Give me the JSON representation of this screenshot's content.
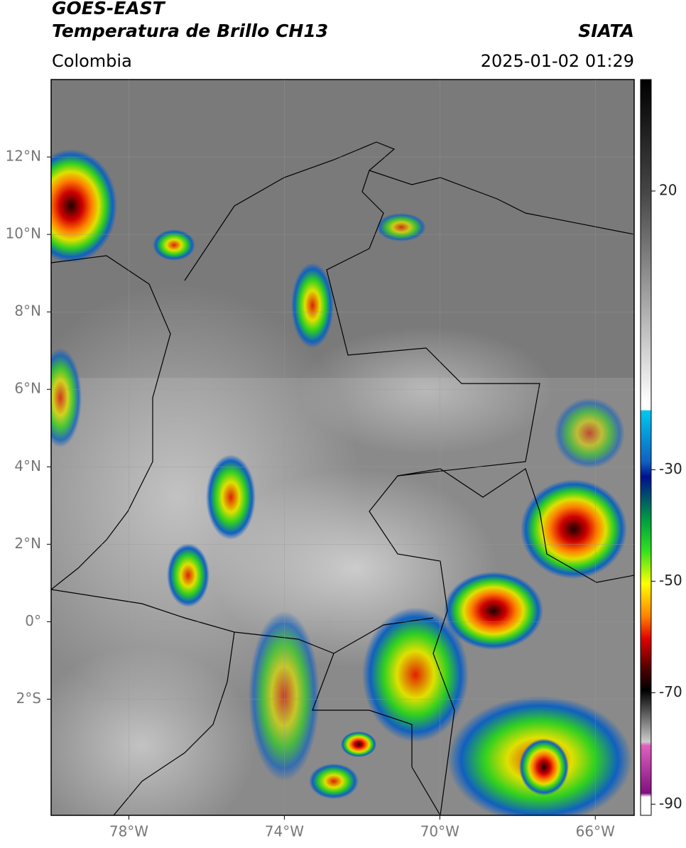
{
  "header": {
    "title": "GOES-EAST",
    "subtitle": "Temperatura de Brillo CH13",
    "source": "SIATA",
    "region": "Colombia",
    "datetime": "2025-01-02 01:29"
  },
  "map": {
    "xlim": [
      -80,
      -65
    ],
    "ylim": [
      -5,
      14
    ],
    "xticks": [
      {
        "value": -78,
        "label": "78°W"
      },
      {
        "value": -74,
        "label": "74°W"
      },
      {
        "value": -70,
        "label": "70°W"
      },
      {
        "value": -66,
        "label": "66°W"
      }
    ],
    "yticks": [
      {
        "value": 12,
        "label": "12°N"
      },
      {
        "value": 10,
        "label": "10°N"
      },
      {
        "value": 8,
        "label": "8°N"
      },
      {
        "value": 6,
        "label": "6°N"
      },
      {
        "value": 4,
        "label": "4°N"
      },
      {
        "value": 2,
        "label": "2°N"
      },
      {
        "value": 0,
        "label": "0°"
      },
      {
        "value": -2,
        "label": "2°S"
      }
    ],
    "grid": true
  },
  "colorbar": {
    "lim": [
      -92,
      40
    ],
    "ticks": [
      20,
      -30,
      -50,
      -70,
      -90
    ]
  }
}
